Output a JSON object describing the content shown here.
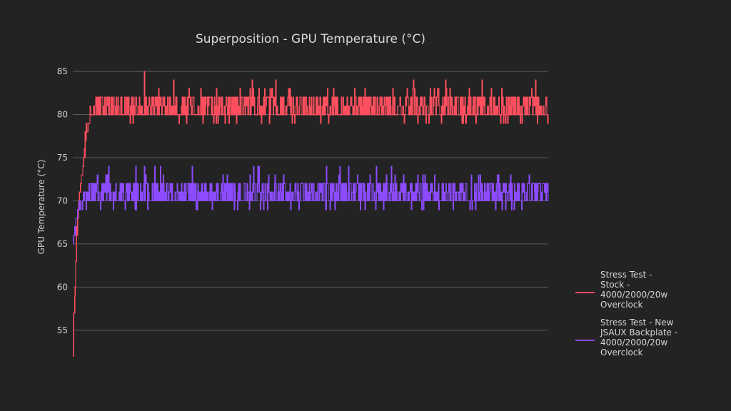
{
  "chart_data": {
    "type": "line",
    "title": "Superposition - GPU Temperature (°C)",
    "xlabel": "",
    "ylabel": "GPU Temperature (°C)",
    "ylim": [
      53,
      86
    ],
    "yticks": [
      55,
      60,
      65,
      70,
      75,
      80,
      85
    ],
    "grid": true,
    "legend_position": "right",
    "series": [
      {
        "name": "Stress Test - Stock - 4000/2000/20w Overclock",
        "legend_lines": [
          "Stress Test -",
          "Stock -",
          "4000/2000/20w",
          "Overclock"
        ],
        "color": "#ff4f5e",
        "ramp": [
          53,
          57,
          60,
          63,
          66,
          68,
          70,
          71,
          72,
          73,
          74,
          75,
          76,
          77,
          78,
          78,
          79,
          79,
          80,
          80,
          80,
          80,
          81,
          81
        ],
        "plateau": {
          "values": [
            79,
            80,
            81,
            82,
            83,
            84,
            85
          ],
          "typical_low": 80,
          "typical_high": 82,
          "min": 79,
          "max": 85
        }
      },
      {
        "name": "Stress Test - New JSAUX Backplate - 4000/2000/20w Overclock",
        "legend_lines": [
          "Stress Test - New",
          "JSAUX Backplate -",
          "4000/2000/20w",
          "Overclock"
        ],
        "color": "#8c4bff",
        "ramp": [
          65,
          66,
          67,
          68,
          68,
          69,
          69,
          69,
          70,
          70,
          70,
          71,
          71,
          71
        ],
        "plateau": {
          "values": [
            69,
            70,
            71,
            72,
            73,
            74
          ],
          "typical_low": 70,
          "typical_high": 72,
          "min": 69,
          "max": 74
        }
      }
    ]
  }
}
